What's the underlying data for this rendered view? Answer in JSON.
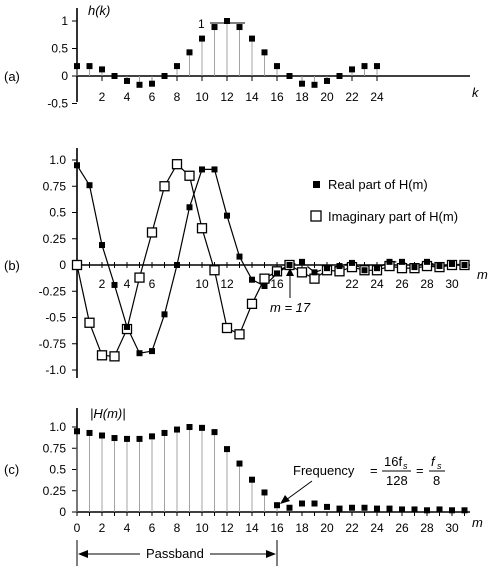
{
  "chart_data": [
    {
      "panel": "(a)",
      "type": "scatter",
      "ylabel": "h(k)",
      "xlabel": "k",
      "annotation": "1",
      "x_ticks": [
        2,
        4,
        6,
        8,
        10,
        12,
        14,
        16,
        18,
        20,
        22,
        24
      ],
      "y_ticks": [
        "-0.5",
        "0",
        "0.5",
        "1"
      ],
      "ylim": [
        -0.5,
        1.1
      ],
      "xlim": [
        0,
        26
      ],
      "series": [
        {
          "x": [
            0,
            1,
            2,
            3,
            4,
            5,
            6,
            7,
            8,
            9,
            10,
            11,
            12,
            13,
            14,
            15,
            16,
            17,
            18,
            19,
            20,
            21,
            22,
            23,
            24
          ],
          "values": [
            0.18,
            0.18,
            0.12,
            0.0,
            -0.09,
            -0.16,
            -0.14,
            0.0,
            0.18,
            0.43,
            0.68,
            0.89,
            1.0,
            0.89,
            0.68,
            0.43,
            0.18,
            0.0,
            -0.14,
            -0.16,
            -0.09,
            0.0,
            0.12,
            0.18,
            0.18
          ]
        }
      ]
    },
    {
      "panel": "(b)",
      "type": "line",
      "xlabel": "m",
      "x_ticks": [
        2,
        4,
        6,
        10,
        12,
        16,
        22,
        24,
        26,
        28,
        30
      ],
      "y_ticks": [
        "1.0",
        "0.75",
        "0.5",
        "0.25",
        "0",
        "-0.25",
        "-0.5",
        "-0.75",
        "-1.0"
      ],
      "ylim": [
        -1.0,
        1.0
      ],
      "xlim": [
        0,
        32
      ],
      "annotation": "m = 17",
      "legend": [
        {
          "key": "real",
          "label": "Real part of H(m)"
        },
        {
          "key": "imag",
          "label": "Imaginary part of H(m)"
        }
      ],
      "series": [
        {
          "key": "real",
          "x": [
            0,
            1,
            2,
            3,
            4,
            5,
            6,
            7,
            8,
            9,
            10,
            11,
            12,
            13,
            14,
            15,
            16,
            17,
            18,
            19,
            20,
            21,
            22,
            23,
            24,
            25,
            26,
            27,
            28,
            29,
            30,
            31
          ],
          "values": [
            0.95,
            0.76,
            0.19,
            -0.19,
            -0.59,
            -0.84,
            -0.82,
            -0.47,
            0.0,
            0.55,
            0.91,
            0.91,
            0.47,
            0.08,
            -0.14,
            -0.2,
            -0.08,
            0.0,
            0.03,
            -0.07,
            -0.03,
            -0.01,
            0.02,
            -0.05,
            -0.03,
            0.03,
            0.03,
            -0.02,
            0.03,
            -0.01,
            0.01,
            0.0
          ]
        },
        {
          "key": "imag",
          "x": [
            0,
            1,
            2,
            3,
            4,
            5,
            6,
            7,
            8,
            9,
            10,
            11,
            12,
            13,
            14,
            15,
            16,
            17,
            18,
            19,
            20,
            21,
            22,
            23,
            24,
            25,
            26,
            27,
            28,
            29,
            30,
            31
          ],
          "values": [
            0.0,
            -0.55,
            -0.86,
            -0.87,
            -0.61,
            -0.12,
            0.31,
            0.75,
            0.96,
            0.85,
            0.35,
            -0.05,
            -0.6,
            -0.66,
            -0.37,
            -0.13,
            -0.06,
            0.0,
            -0.07,
            -0.13,
            -0.05,
            -0.06,
            -0.02,
            -0.05,
            -0.05,
            -0.01,
            -0.03,
            -0.03,
            -0.01,
            -0.02,
            0.0,
            0.0
          ]
        }
      ]
    },
    {
      "panel": "(c)",
      "type": "scatter",
      "ylabel": "|H(m)|",
      "xlabel": "m",
      "x_ticks": [
        0,
        2,
        4,
        6,
        8,
        10,
        12,
        14,
        16,
        18,
        20,
        22,
        24,
        26,
        28,
        30
      ],
      "y_ticks": [
        "1.0",
        "0.75",
        "0.5",
        "0.25",
        "0"
      ],
      "ylim": [
        0,
        1.1
      ],
      "xlim": [
        0,
        32
      ],
      "annotation_frequency": "Frequency",
      "annotation_formula": [
        "16f",
        "s",
        "128",
        "f",
        "s",
        "8"
      ],
      "passband_label": "Passband",
      "series": [
        {
          "x": [
            0,
            1,
            2,
            3,
            4,
            5,
            6,
            7,
            8,
            9,
            10,
            11,
            12,
            13,
            14,
            15,
            16,
            17,
            18,
            19,
            20,
            21,
            22,
            23,
            24,
            25,
            26,
            27,
            28,
            29,
            30,
            31
          ],
          "values": [
            0.95,
            0.93,
            0.9,
            0.87,
            0.86,
            0.86,
            0.89,
            0.93,
            0.97,
            1.0,
            0.99,
            0.94,
            0.74,
            0.57,
            0.38,
            0.23,
            0.08,
            0.05,
            0.1,
            0.1,
            0.06,
            0.04,
            0.05,
            0.05,
            0.04,
            0.04,
            0.03,
            0.03,
            0.02,
            0.03,
            0.02,
            0.02
          ]
        }
      ]
    }
  ]
}
